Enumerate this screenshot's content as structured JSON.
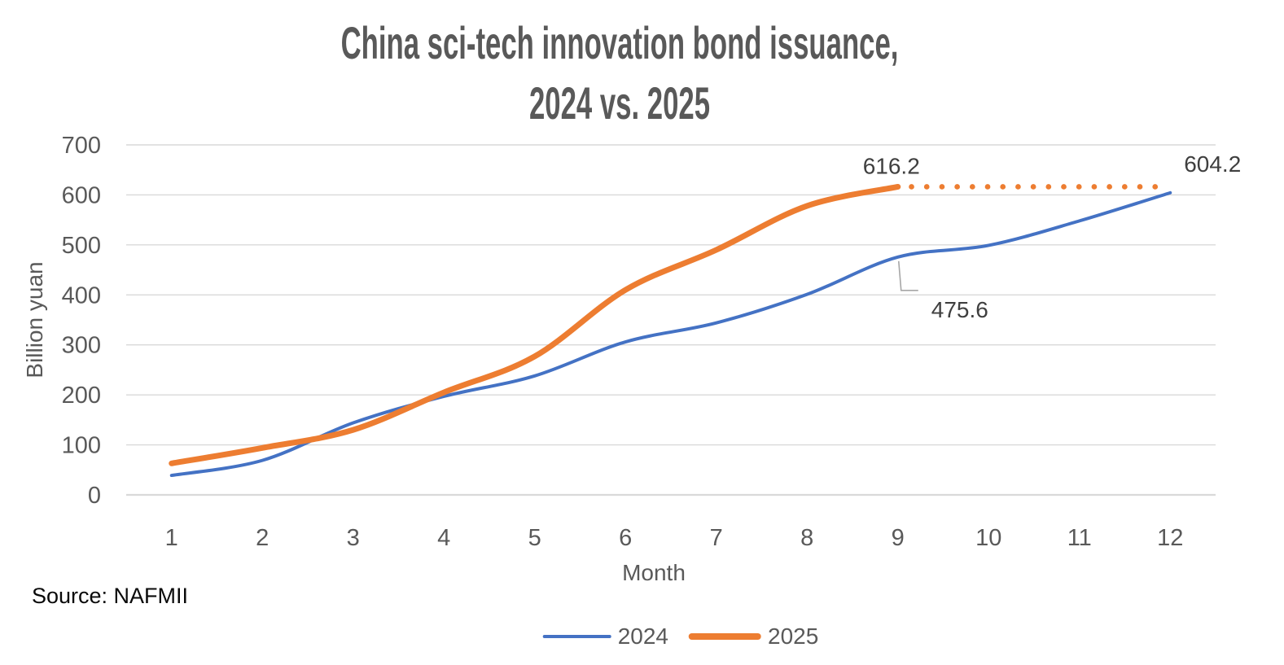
{
  "title": "China sci-tech innovation bond issuance,\n2024 vs. 2025",
  "source": "Source: NAFMII",
  "colors": {
    "series_2024": "#4472C4",
    "series_2025": "#ED7D31",
    "grid": "#D9D9D9",
    "tick_text": "#595959",
    "data_label_text": "#3F3F3F",
    "leader_line": "#A6A6A6",
    "title_text": "#595959"
  },
  "chart_data": {
    "type": "line",
    "title": "China sci-tech innovation bond issuance,\n2024 vs. 2025",
    "xlabel": "Month",
    "ylabel": "Billion yuan",
    "x": [
      1,
      2,
      3,
      4,
      5,
      6,
      7,
      8,
      9,
      10,
      11,
      12
    ],
    "ylim": [
      0,
      700
    ],
    "ytick_step": 100,
    "grid": true,
    "legend_position": "bottom",
    "series": [
      {
        "name": "2024",
        "color": "#4472C4",
        "width": 4,
        "style": "solid",
        "values": [
          39,
          69,
          144,
          197,
          238,
          306,
          344,
          401,
          475.6,
          499,
          548,
          604.2
        ]
      },
      {
        "name": "2025",
        "color": "#ED7D31",
        "width": 7,
        "style": "solid",
        "values": [
          63,
          94,
          130,
          205,
          277,
          410,
          490,
          578,
          616.2
        ]
      }
    ],
    "projection": {
      "series": "2025",
      "style": "dotted",
      "color": "#ED7D31",
      "value": 616.2,
      "from_month": 9.15,
      "to_month": 11.85
    },
    "annotations": [
      {
        "text": "616.2",
        "series": "2025",
        "month": 9,
        "value": 616.2,
        "placement": "above"
      },
      {
        "text": "604.2",
        "series": "2024",
        "month": 12,
        "value": 604.2,
        "placement": "above-right"
      },
      {
        "text": "475.6",
        "series": "2024",
        "month": 9,
        "value": 475.6,
        "placement": "below-right",
        "leader": true
      }
    ]
  }
}
